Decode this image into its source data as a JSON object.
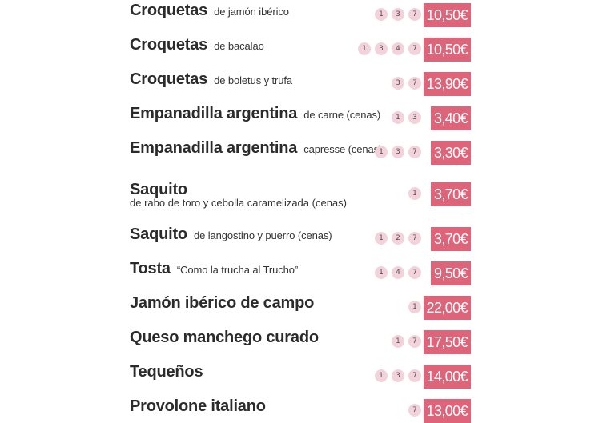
{
  "colors": {
    "price_bg": "#dd6479",
    "badge_bg": "#f2d3dc",
    "text": "#2b2b2b"
  },
  "items": [
    {
      "name": "Croquetas",
      "desc": "de jamón ibérico",
      "allergens": [
        "1",
        "3",
        "7"
      ],
      "price": "10,50€"
    },
    {
      "name": "Croquetas",
      "desc": "de bacalao",
      "allergens": [
        "1",
        "3",
        "4",
        "7"
      ],
      "price": "10,50€"
    },
    {
      "name": "Croquetas",
      "desc": "de boletus y trufa",
      "allergens": [
        "3",
        "7"
      ],
      "price": "13,90€"
    },
    {
      "name": "Empanadilla argentina",
      "desc": "de carne (cenas)",
      "allergens": [
        "1",
        "3"
      ],
      "price": "3,40€"
    },
    {
      "name": "Empanadilla argentina",
      "desc": "capresse (cenas)",
      "allergens": [
        "1",
        "3",
        "7"
      ],
      "price": "3,30€"
    },
    {
      "name": "Saquito",
      "desc_below": "de rabo de toro y cebolla caramelizada (cenas)",
      "allergens": [
        "1"
      ],
      "price": "3,70€"
    },
    {
      "name": "Saquito",
      "desc": "de langostino y puerro (cenas)",
      "allergens": [
        "1",
        "2",
        "7"
      ],
      "price": "3,70€"
    },
    {
      "name": "Tosta",
      "desc": "“Como la trucha al Trucho”",
      "allergens": [
        "1",
        "4",
        "7"
      ],
      "price": "9,50€"
    },
    {
      "name": "Jamón ibérico de campo",
      "allergens": [
        "1"
      ],
      "price": "22,00€"
    },
    {
      "name": "Queso manchego curado",
      "allergens": [
        "1",
        "7"
      ],
      "price": "17,50€"
    },
    {
      "name": "Tequeños",
      "allergens": [
        "1",
        "3",
        "7"
      ],
      "price": "14,00€"
    },
    {
      "name": "Provolone italiano",
      "allergens": [
        "7"
      ],
      "price": "13,00€"
    }
  ]
}
